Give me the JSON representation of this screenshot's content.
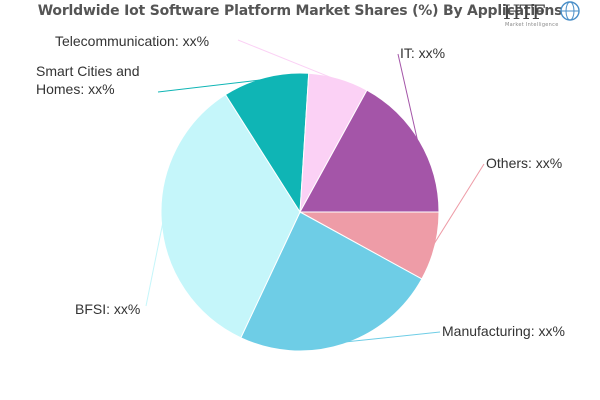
{
  "title": "Worldwide Iot Software Platform Market Shares (%) By Applications",
  "logo": {
    "mark": "HTF",
    "subtitle": "Market Intelligence"
  },
  "chart_data": {
    "type": "pie",
    "categories": [
      "Others",
      "Manufacturing",
      "BFSI",
      "Smart Cities and Homes",
      "Telecommunication",
      "IT"
    ],
    "values": [
      8,
      24,
      34,
      10,
      7,
      17
    ],
    "labels": [
      "Others: xx%",
      "Manufacturing: xx%",
      "BFSI: xx%",
      [
        "Smart Cities and",
        "Homes: xx%"
      ],
      "Telecommunication: xx%",
      "IT: xx%"
    ],
    "colors": [
      "#ee9ca7",
      "#6ecde6",
      "#c5f6fa",
      "#0fb5b5",
      "#fbd1f5",
      "#a455a8"
    ],
    "start_angle_deg": 0,
    "direction": "clockwise",
    "legend": "none"
  }
}
